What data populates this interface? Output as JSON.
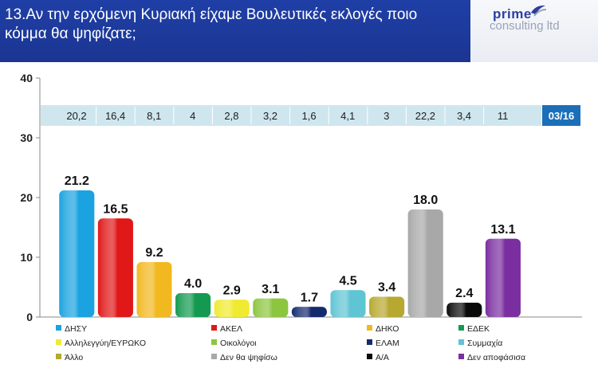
{
  "header": {
    "title": "13.Αν την ερχόμενη Κυριακή είχαμε Βουλευτικές εκλογές ποιο κόμμα θα ψηφίζατε;",
    "logo_top": "prime",
    "logo_bottom": "consulting ltd"
  },
  "colors": {
    "title_band": "#1f3fa6",
    "previous_band": "#cfe6ee",
    "previous_period_badge": "#1a6fb8"
  },
  "chart_data": {
    "type": "bar",
    "categories": [
      "ΔΗΣΥ",
      "ΑΚΕΛ",
      "ΔΗΚΟ",
      "ΕΔΕΚ",
      "Αλληλεγγύη/ΕΥΡΩΚΟ",
      "Οικολόγοι",
      "ΕΛΑΜ",
      "Συμμαχία",
      "Άλλο",
      "Δεν θα ψηφίσω",
      "Α/Α",
      "Δεν αποφάσισα"
    ],
    "values": [
      21.2,
      16.5,
      9.2,
      4.0,
      2.9,
      3.1,
      1.7,
      4.5,
      3.4,
      18.0,
      2.4,
      13.1
    ],
    "value_labels": [
      "21.2",
      "16.5",
      "9.2",
      "4.0",
      "2.9",
      "3.1",
      "1.7",
      "4.5",
      "3.4",
      "18.0",
      "2.4",
      "13.1"
    ],
    "colors": [
      "#1aa3e0",
      "#e01818",
      "#f2b820",
      "#139a50",
      "#f0ea30",
      "#8cc63f",
      "#142a6e",
      "#5fc4d4",
      "#b6a830",
      "#a8a8a8",
      "#0a0a0a",
      "#7a2ea0"
    ],
    "previous_period": {
      "label": "03/16",
      "values": [
        "20,2",
        "16,4",
        "8,1",
        "4",
        "2,8",
        "3,2",
        "1,6",
        "4,1",
        "3",
        "22,2",
        "3,4",
        "11"
      ]
    },
    "ylim": [
      0,
      40
    ],
    "yticks": [
      "0",
      "10",
      "20",
      "30",
      "40"
    ],
    "grid": false,
    "legend_position": "bottom"
  }
}
